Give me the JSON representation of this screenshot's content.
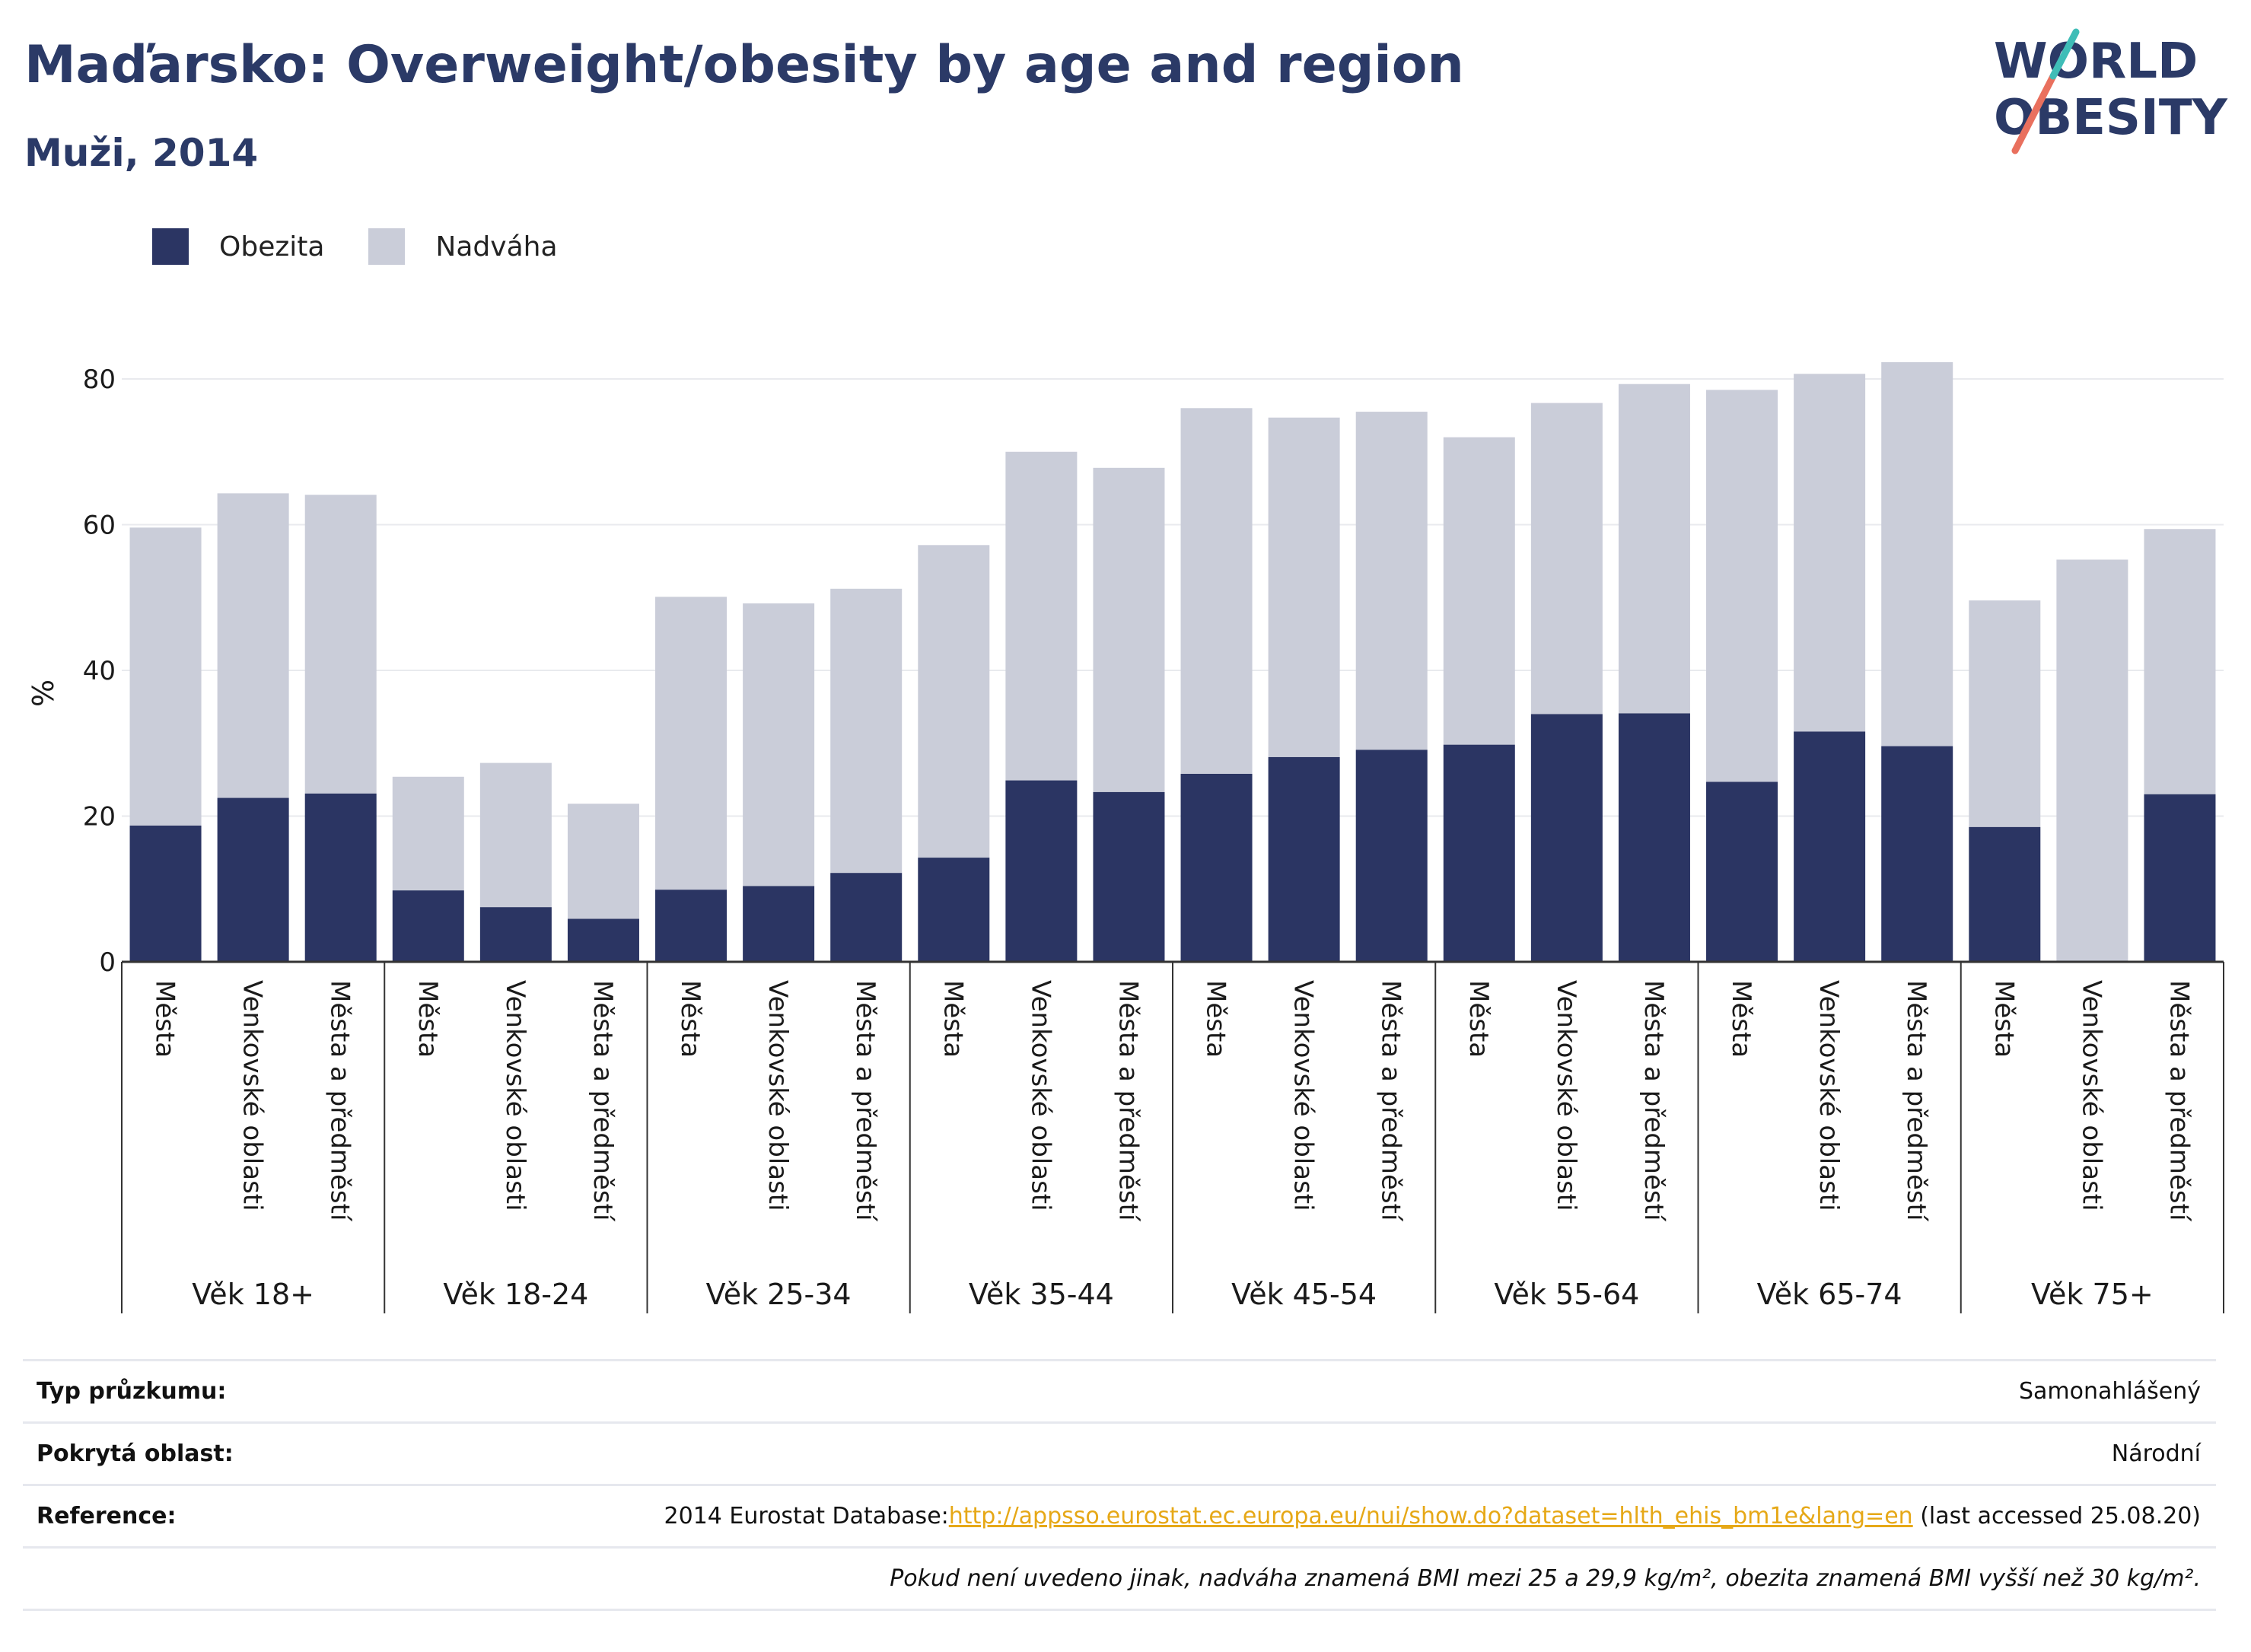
{
  "header": {
    "title": "Maďarsko: Overweight/obesity by age and region",
    "subtitle": "Muži, 2014"
  },
  "logo": {
    "line1": "WORLD",
    "line2": "OBESITY"
  },
  "colors": {
    "obesity": "#2b3563",
    "overweight": "#cacdd9",
    "title": "#2b3a67",
    "link": "#e6a817"
  },
  "chart_data": {
    "type": "bar",
    "stacked": true,
    "ylabel": "%",
    "ylim": [
      0,
      90
    ],
    "yticks": [
      0,
      20,
      40,
      60,
      80
    ],
    "grid": true,
    "legend_position": "top-left",
    "series": [
      {
        "name": "Obezita",
        "color": "#2b3563",
        "values": [
          18.7,
          22.5,
          23.1,
          9.8,
          7.5,
          5.9,
          9.9,
          10.4,
          12.2,
          14.3,
          24.9,
          23.3,
          25.8,
          28.1,
          29.1,
          29.8,
          34.0,
          34.1,
          24.7,
          31.6,
          29.6,
          18.5,
          0,
          23.0
        ]
      },
      {
        "name": "Nadváha",
        "color": "#cacdd9",
        "values": [
          40.9,
          41.8,
          41.0,
          15.6,
          19.8,
          15.8,
          40.2,
          38.8,
          39.0,
          42.9,
          45.1,
          44.5,
          50.2,
          46.6,
          46.4,
          42.2,
          42.7,
          45.2,
          53.8,
          49.1,
          52.7,
          31.1,
          55.2,
          36.4
        ]
      }
    ],
    "groups": [
      {
        "label": "Věk 18+",
        "categories": [
          "Města",
          "Venkovské oblasti",
          "Města a předměstí"
        ]
      },
      {
        "label": "Věk 18-24",
        "categories": [
          "Města",
          "Venkovské oblasti",
          "Města a předměstí"
        ]
      },
      {
        "label": "Věk 25-34",
        "categories": [
          "Města",
          "Venkovské oblasti",
          "Města a předměstí"
        ]
      },
      {
        "label": "Věk 35-44",
        "categories": [
          "Města",
          "Venkovské oblasti",
          "Města a předměstí"
        ]
      },
      {
        "label": "Věk 45-54",
        "categories": [
          "Města",
          "Venkovské oblasti",
          "Města a předměstí"
        ]
      },
      {
        "label": "Věk 55-64",
        "categories": [
          "Města",
          "Venkovské oblasti",
          "Města a předměstí"
        ]
      },
      {
        "label": "Věk 65-74",
        "categories": [
          "Města",
          "Venkovské oblasti",
          "Města a předměstí"
        ]
      },
      {
        "label": "Věk 75+",
        "categories": [
          "Města",
          "Venkovské oblasti",
          "Města a předměstí"
        ]
      }
    ]
  },
  "info": {
    "survey_type_label": "Typ průzkumu:",
    "survey_type_value": "Samonahlášený",
    "coverage_label": "Pokrytá oblast:",
    "coverage_value": "Národní",
    "reference_label": "Reference:",
    "reference_prefix": "2014 Eurostat Database:",
    "reference_link": "http://appsso.eurostat.ec.europa.eu/nui/show.do?dataset=hlth_ehis_bm1e&lang=en",
    "reference_suffix": " (last accessed 25.08.20)",
    "note": "Pokud není uvedeno jinak, nadváha znamená BMI mezi 25 a 29,9 kg/m², obezita znamená BMI vyšší než 30 kg/m²."
  }
}
